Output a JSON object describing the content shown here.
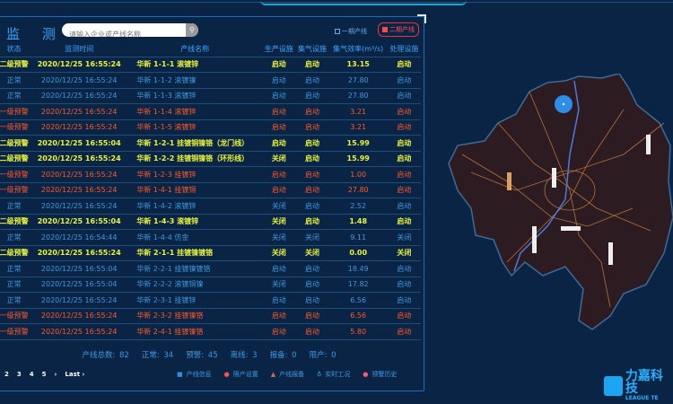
{
  "header": {
    "title": "监 测",
    "search_placeholder": "请输入企业或产线名称",
    "search_icon": "magnifier"
  },
  "filters": [
    {
      "label": "一期产线",
      "checked": false
    },
    {
      "label": "二期产线",
      "checked": true
    }
  ],
  "columns": [
    "状态",
    "监测时间",
    "产线名称",
    "生产设施",
    "集气设施",
    "集气效率(m³/s)",
    "处理设施"
  ],
  "colors": {
    "yellow": "#e8f53a",
    "red": "#ff5a28",
    "blue": "#3a9ae0",
    "background": "#0a2446"
  },
  "rows": [
    {
      "level": "yellow",
      "status": "二级预警",
      "time": "2020/12/25 16:55:24",
      "name": "华新 1-1-1 滚镀锌",
      "prod": "启动",
      "gas": "启动",
      "eff": "13.15",
      "treat": "启动"
    },
    {
      "level": "blue",
      "status": "正常",
      "time": "2020/12/25 16:55:24",
      "name": "华新 1-1-2 滚镀镍",
      "prod": "启动",
      "gas": "启动",
      "eff": "27.80",
      "treat": "启动"
    },
    {
      "level": "blue",
      "status": "正常",
      "time": "2020/12/25 16:55:24",
      "name": "华新 1-1-3 滚镀锌",
      "prod": "启动",
      "gas": "启动",
      "eff": "27.80",
      "treat": "启动"
    },
    {
      "level": "red",
      "status": "一级预警",
      "time": "2020/12/25 16:55:24",
      "name": "华新 1-1-4 滚镀锌",
      "prod": "启动",
      "gas": "启动",
      "eff": "3.21",
      "treat": "启动"
    },
    {
      "level": "red",
      "status": "一级预警",
      "time": "2020/12/25 16:55:24",
      "name": "华新 1-1-5 滚镀锌",
      "prod": "启动",
      "gas": "启动",
      "eff": "3.21",
      "treat": "启动"
    },
    {
      "level": "yellow",
      "status": "二级预警",
      "time": "2020/12/25 16:55:04",
      "name": "华新 1-2-1 挂镀铜镍铬（龙门线）",
      "prod": "启动",
      "gas": "启动",
      "eff": "15.99",
      "treat": "启动"
    },
    {
      "level": "yellow",
      "status": "二级预警",
      "time": "2020/12/25 16:55:24",
      "name": "华新 1-2-2 挂镀铜镍铬（环形线）",
      "prod": "关闭",
      "gas": "启动",
      "eff": "15.99",
      "treat": "启动"
    },
    {
      "level": "red",
      "status": "一级预警",
      "time": "2020/12/25 16:55:24",
      "name": "华新 1-2-3 挂镀锌",
      "prod": "启动",
      "gas": "启动",
      "eff": "1.00",
      "treat": "启动"
    },
    {
      "level": "red",
      "status": "一级预警",
      "time": "2020/12/25 16:55:24",
      "name": "华新 1-4-1 挂镀铜",
      "prod": "启动",
      "gas": "启动",
      "eff": "27.80",
      "treat": "启动"
    },
    {
      "level": "blue",
      "status": "正常",
      "time": "2020/12/25 16:55:24",
      "name": "华新 1-4-2 滚镀锌",
      "prod": "关闭",
      "gas": "启动",
      "eff": "2.52",
      "treat": "启动"
    },
    {
      "level": "yellow",
      "status": "二级预警",
      "time": "2020/12/25 16:55:04",
      "name": "华新 1-4-3 滚镀锌",
      "prod": "关闭",
      "gas": "启动",
      "eff": "1.48",
      "treat": "启动"
    },
    {
      "level": "blue",
      "status": "正常",
      "time": "2020/12/25 16:54:44",
      "name": "华新 1-4-4 仿金",
      "prod": "关闭",
      "gas": "关闭",
      "eff": "9.11",
      "treat": "关闭"
    },
    {
      "level": "yellow",
      "status": "二级预警",
      "time": "2020/12/25 16:55:24",
      "name": "华新 2-1-1 挂镀镍镀铬",
      "prod": "关闭",
      "gas": "关闭",
      "eff": "0.00",
      "treat": "关闭"
    },
    {
      "level": "blue",
      "status": "正常",
      "time": "2020/12/25 16:55:04",
      "name": "华新 2-2-1 挂镀镍镀铬",
      "prod": "启动",
      "gas": "启动",
      "eff": "18.49",
      "treat": "启动"
    },
    {
      "level": "blue",
      "status": "正常",
      "time": "2020/12/25 16:55:04",
      "name": "华新 2-2-2 滚镀铜镍",
      "prod": "关闭",
      "gas": "启动",
      "eff": "17.82",
      "treat": "启动"
    },
    {
      "level": "blue",
      "status": "正常",
      "time": "2020/12/25 16:55:24",
      "name": "华新 2-3-1 挂镀锌",
      "prod": "启动",
      "gas": "启动",
      "eff": "6.56",
      "treat": "启动"
    },
    {
      "level": "red",
      "status": "一级预警",
      "time": "2020/12/25 16:55:24",
      "name": "华新 2-3-2 挂镀镍铬",
      "prod": "启动",
      "gas": "启动",
      "eff": "6.56",
      "treat": "启动"
    },
    {
      "level": "red",
      "status": "一级预警",
      "time": "2020/12/25 16:55:24",
      "name": "华新 2-4-1 挂镀镍铬",
      "prod": "启动",
      "gas": "启动",
      "eff": "5.80",
      "treat": "启动"
    }
  ],
  "summary": [
    "产线总数: 82",
    "正常: 34",
    "预警: 45",
    "离线: 3",
    "报备: 0",
    "限产: 0"
  ],
  "pagination": [
    "2",
    "3",
    "4",
    "5",
    "›",
    "Last ›"
  ],
  "links": [
    {
      "label": "产线信息",
      "icon": "info",
      "color": "#2b8fe0"
    },
    {
      "label": "限产设置",
      "icon": "circle",
      "color": "#ff5050"
    },
    {
      "label": "产线报备",
      "icon": "triangle",
      "color": "#d0704a"
    },
    {
      "label": "实时工况",
      "icon": "gauge",
      "color": "#2bb0e0"
    },
    {
      "label": "预警历史",
      "icon": "alert",
      "color": "#ff5a7a"
    }
  ],
  "logo": {
    "name": "力嘉科技",
    "sub": "LEAGUE TE"
  }
}
